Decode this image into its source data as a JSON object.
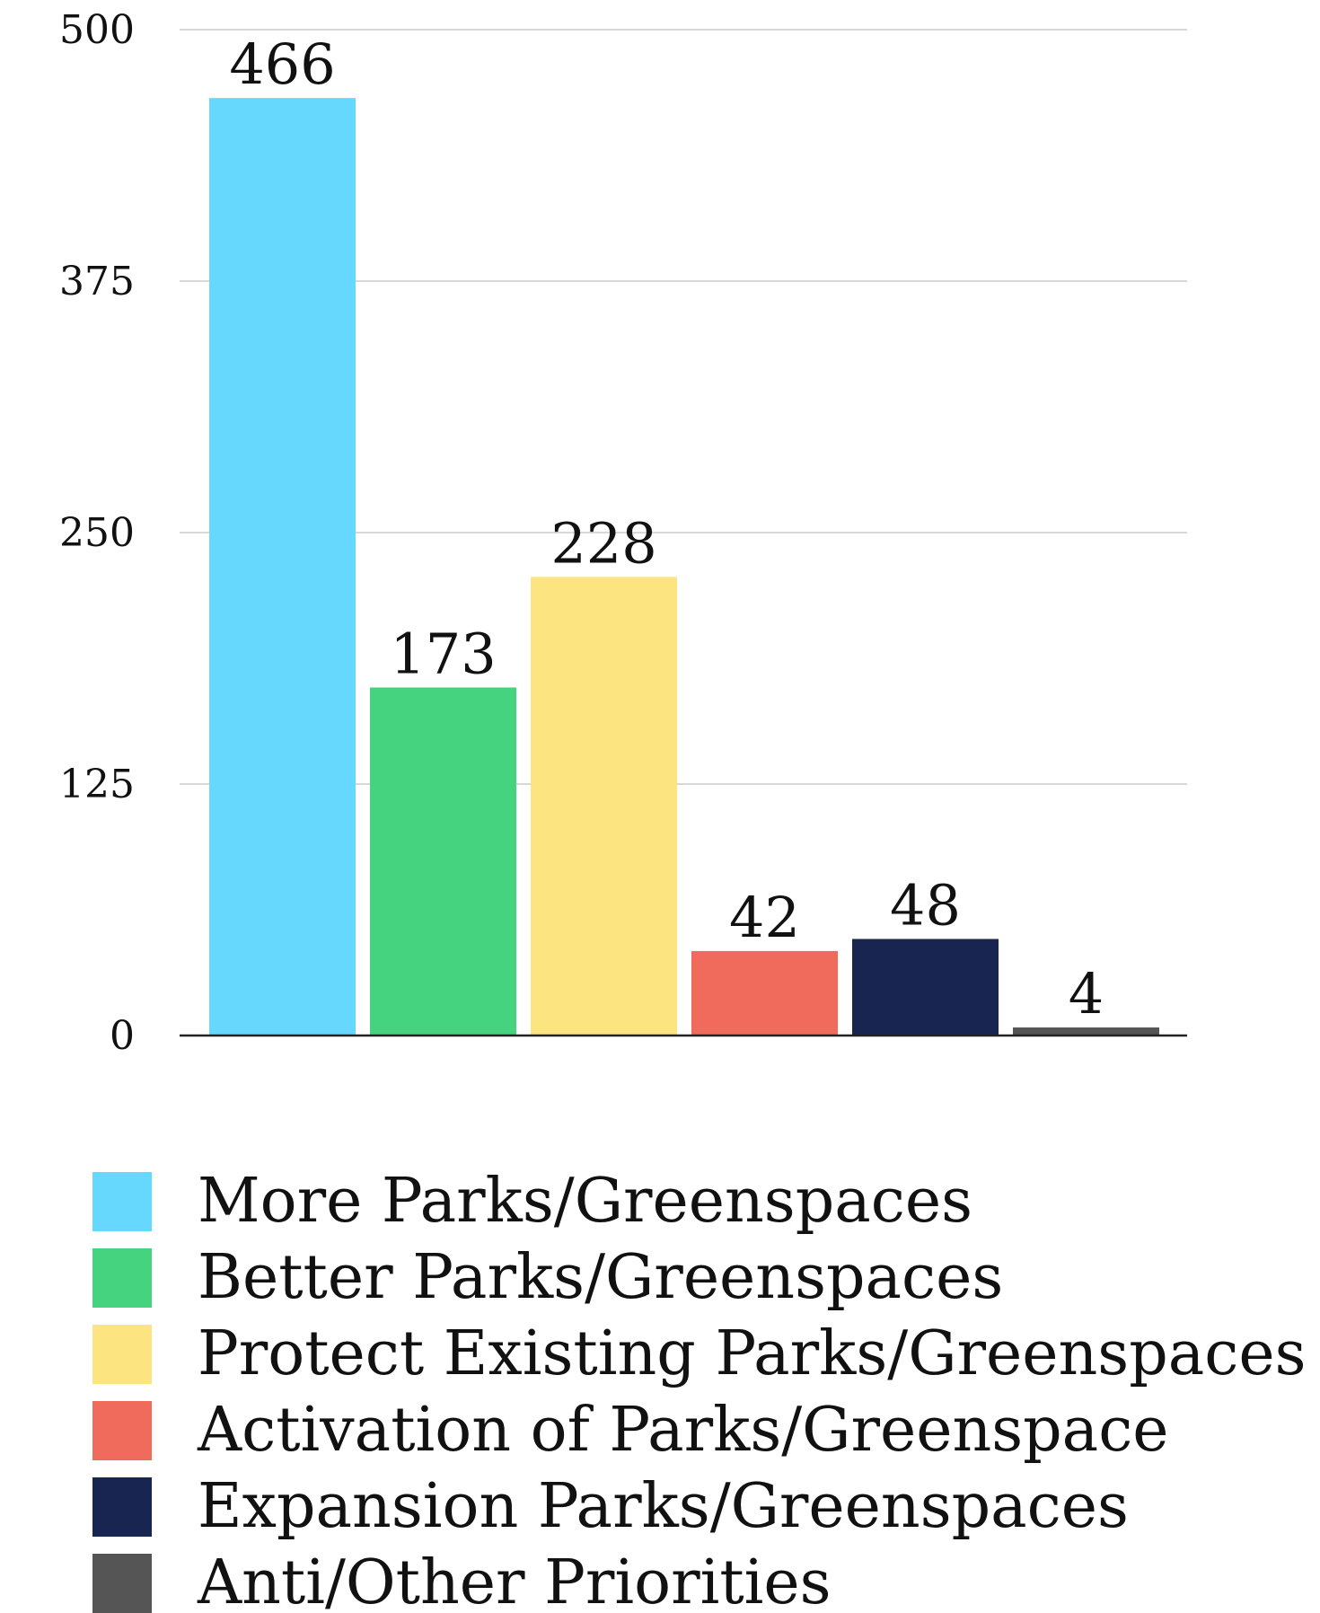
{
  "chart_data": {
    "type": "bar",
    "title": "",
    "xlabel": "",
    "ylabel": "",
    "ylim": [
      0,
      500
    ],
    "yticks": [
      0,
      125,
      250,
      375,
      500
    ],
    "grid": true,
    "legend_position": "bottom",
    "categories": [
      "More Parks/Greenspaces",
      "Better Parks/Greenspaces",
      "Protect Existing Parks/Greenspaces",
      "Activation of Parks/Greenspace",
      "Expansion Parks/Greenspaces",
      "Anti/Other Priorities"
    ],
    "values": [
      466,
      173,
      228,
      42,
      48,
      4
    ],
    "colors": [
      "#66d7fd",
      "#46d37f",
      "#fce581",
      "#f16b5c",
      "#182550",
      "#555555"
    ]
  }
}
